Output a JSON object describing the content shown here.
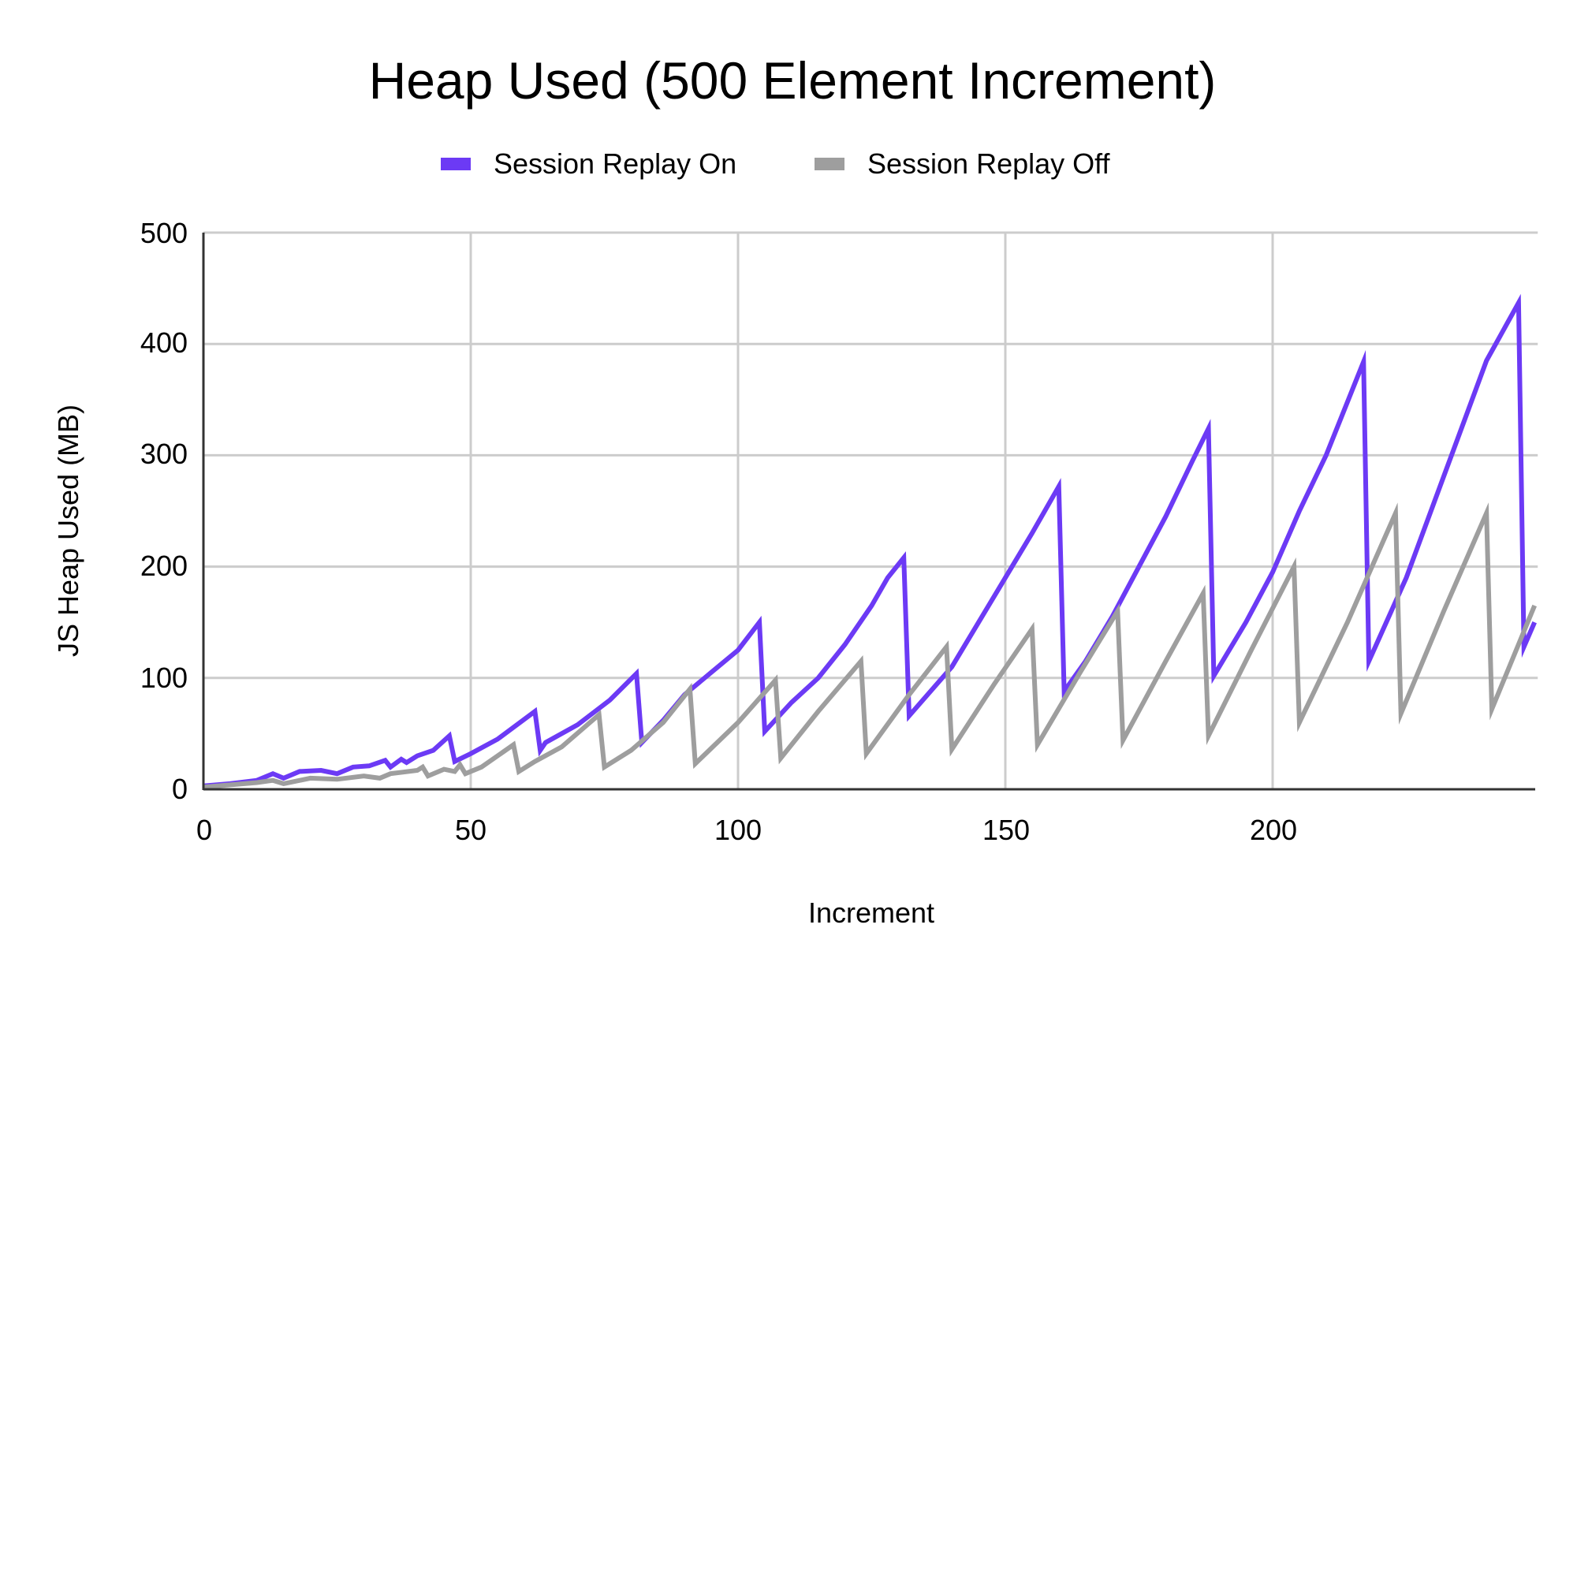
{
  "title": "Heap Used (500 Element Increment)",
  "legend": [
    {
      "label": "Session Replay On",
      "color": "#6C3AF5"
    },
    {
      "label": "Session Replay Off",
      "color": "#9E9E9E"
    }
  ],
  "axes": {
    "x_title": "Increment",
    "y_title": "JS Heap Used (MB)",
    "x_ticks": [
      "0",
      "50",
      "100",
      "150",
      "200"
    ],
    "y_ticks": [
      "0",
      "100",
      "200",
      "300",
      "400",
      "500"
    ]
  },
  "chart_data": {
    "type": "line",
    "title": "Heap Used (500 Element Increment)",
    "xlabel": "Increment",
    "ylabel": "JS Heap Used (MB)",
    "xlim": [
      0,
      249
    ],
    "ylim": [
      0,
      500
    ],
    "x_ticks": [
      0,
      50,
      100,
      150,
      200
    ],
    "y_ticks": [
      0,
      100,
      200,
      300,
      400,
      500
    ],
    "grid": true,
    "legend_position": "top",
    "series": [
      {
        "name": "Session Replay On",
        "color": "#6C3AF5",
        "points": [
          [
            0,
            3
          ],
          [
            5,
            5
          ],
          [
            10,
            8
          ],
          [
            13,
            14
          ],
          [
            15,
            10
          ],
          [
            18,
            16
          ],
          [
            22,
            17
          ],
          [
            25,
            14
          ],
          [
            28,
            20
          ],
          [
            31,
            21
          ],
          [
            34,
            26
          ],
          [
            35,
            20
          ],
          [
            37,
            27
          ],
          [
            38,
            24
          ],
          [
            40,
            30
          ],
          [
            43,
            35
          ],
          [
            46,
            48
          ],
          [
            47,
            25
          ],
          [
            50,
            32
          ],
          [
            55,
            45
          ],
          [
            62,
            70
          ],
          [
            63,
            35
          ],
          [
            64,
            42
          ],
          [
            70,
            58
          ],
          [
            76,
            80
          ],
          [
            81,
            104
          ],
          [
            82,
            42
          ],
          [
            86,
            62
          ],
          [
            90,
            85
          ],
          [
            95,
            105
          ],
          [
            100,
            125
          ],
          [
            104,
            150
          ],
          [
            105,
            52
          ],
          [
            110,
            78
          ],
          [
            115,
            100
          ],
          [
            120,
            130
          ],
          [
            125,
            165
          ],
          [
            128,
            190
          ],
          [
            131,
            208
          ],
          [
            132,
            66
          ],
          [
            140,
            110
          ],
          [
            145,
            150
          ],
          [
            150,
            190
          ],
          [
            155,
            230
          ],
          [
            160,
            272
          ],
          [
            161,
            88
          ],
          [
            165,
            115
          ],
          [
            170,
            155
          ],
          [
            175,
            200
          ],
          [
            180,
            245
          ],
          [
            185,
            295
          ],
          [
            188,
            324
          ],
          [
            189,
            102
          ],
          [
            195,
            150
          ],
          [
            200,
            195
          ],
          [
            205,
            250
          ],
          [
            210,
            300
          ],
          [
            217,
            384
          ],
          [
            218,
            115
          ],
          [
            225,
            190
          ],
          [
            230,
            255
          ],
          [
            235,
            320
          ],
          [
            240,
            385
          ],
          [
            246,
            437
          ],
          [
            247,
            128
          ],
          [
            249,
            150
          ]
        ]
      },
      {
        "name": "Session Replay Off",
        "color": "#9E9E9E",
        "points": [
          [
            0,
            2
          ],
          [
            10,
            6
          ],
          [
            13,
            8
          ],
          [
            15,
            5
          ],
          [
            20,
            10
          ],
          [
            25,
            9
          ],
          [
            30,
            12
          ],
          [
            33,
            10
          ],
          [
            35,
            14
          ],
          [
            40,
            17
          ],
          [
            41,
            20
          ],
          [
            42,
            12
          ],
          [
            45,
            18
          ],
          [
            47,
            16
          ],
          [
            48,
            22
          ],
          [
            49,
            14
          ],
          [
            52,
            20
          ],
          [
            58,
            40
          ],
          [
            59,
            16
          ],
          [
            62,
            25
          ],
          [
            67,
            38
          ],
          [
            74,
            67
          ],
          [
            75,
            20
          ],
          [
            80,
            35
          ],
          [
            86,
            60
          ],
          [
            91,
            90
          ],
          [
            92,
            23
          ],
          [
            100,
            60
          ],
          [
            107,
            98
          ],
          [
            108,
            28
          ],
          [
            115,
            70
          ],
          [
            123,
            115
          ],
          [
            124,
            32
          ],
          [
            132,
            85
          ],
          [
            139,
            128
          ],
          [
            140,
            36
          ],
          [
            148,
            95
          ],
          [
            155,
            144
          ],
          [
            156,
            40
          ],
          [
            164,
            105
          ],
          [
            171,
            160
          ],
          [
            172,
            44
          ],
          [
            180,
            115
          ],
          [
            187,
            176
          ],
          [
            188,
            48
          ],
          [
            196,
            125
          ],
          [
            204,
            200
          ],
          [
            205,
            60
          ],
          [
            214,
            150
          ],
          [
            223,
            248
          ],
          [
            224,
            68
          ],
          [
            232,
            160
          ],
          [
            240,
            248
          ],
          [
            241,
            72
          ],
          [
            249,
            165
          ]
        ]
      }
    ]
  }
}
